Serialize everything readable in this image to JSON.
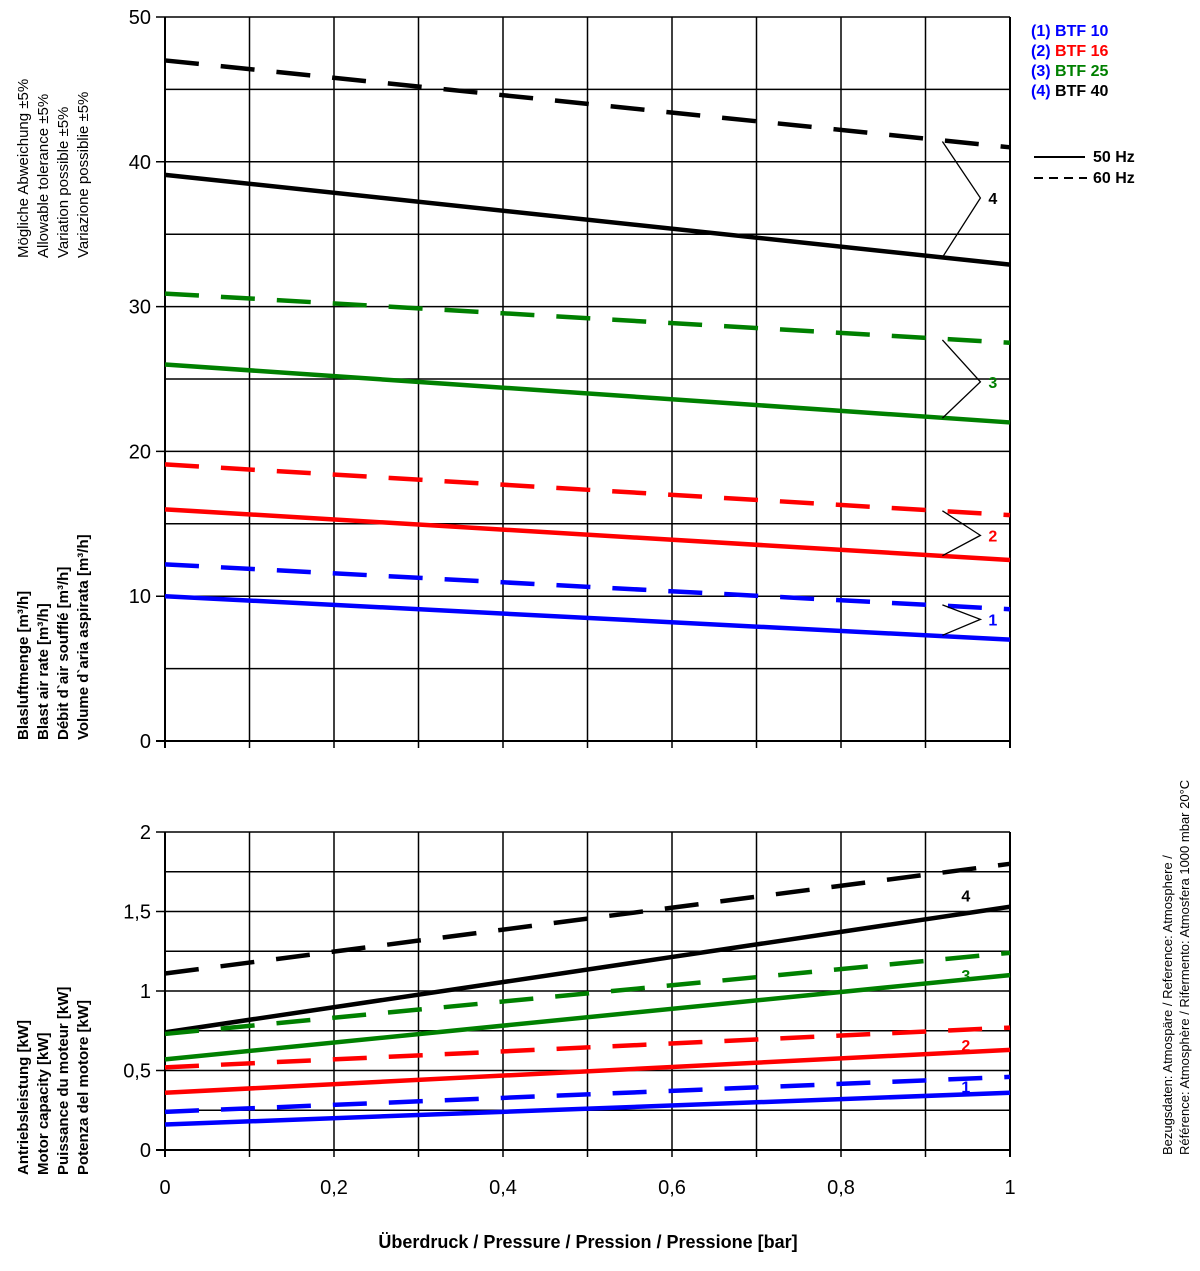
{
  "chart_data": [
    {
      "type": "line",
      "id": "flow",
      "title": "",
      "xlabel": "",
      "ylabel_lines": [
        "Blasluftmenge [m³/h]",
        "Blast air rate [m³/h]",
        "Débit d`air soufflé [m³/h]",
        "Volume d`aria aspirata [m³/h]"
      ],
      "tolerance_lines": [
        "Mögliche Abweichung ±5%",
        "Allowable tolerance ±5%",
        "Variation possible ±5%",
        "Variazione possiblie ±5%"
      ],
      "xlim": [
        0,
        1
      ],
      "ylim": [
        0,
        50
      ],
      "y_ticks": [
        0,
        10,
        20,
        30,
        40,
        50
      ],
      "y_tick_labels": [
        "0",
        "10",
        "20",
        "30",
        "40",
        "50"
      ],
      "y_minor_grid": [
        5,
        15,
        25,
        35,
        45
      ],
      "x_grid": [
        0,
        0.1,
        0.2,
        0.3,
        0.4,
        0.5,
        0.6,
        0.7,
        0.8,
        0.9,
        1
      ],
      "grid": true,
      "x": [
        0,
        1
      ],
      "series": [
        {
          "name": "BTF 40 60 Hz",
          "model": 4,
          "freq": "60 Hz",
          "color": "#000000",
          "dashed": true,
          "values": [
            47.0,
            41.0
          ]
        },
        {
          "name": "BTF 40 50 Hz",
          "model": 4,
          "freq": "50 Hz",
          "color": "#000000",
          "dashed": false,
          "values": [
            39.1,
            32.9
          ]
        },
        {
          "name": "BTF 25 60 Hz",
          "model": 3,
          "freq": "60 Hz",
          "color": "#008000",
          "dashed": true,
          "values": [
            30.9,
            27.5
          ]
        },
        {
          "name": "BTF 25 50 Hz",
          "model": 3,
          "freq": "50 Hz",
          "color": "#008000",
          "dashed": false,
          "values": [
            26.0,
            22.0
          ]
        },
        {
          "name": "BTF 16 60 Hz",
          "model": 2,
          "freq": "60 Hz",
          "color": "#ff0000",
          "dashed": true,
          "values": [
            19.1,
            15.6
          ]
        },
        {
          "name": "BTF 16 50 Hz",
          "model": 2,
          "freq": "50 Hz",
          "color": "#ff0000",
          "dashed": false,
          "values": [
            16.0,
            12.5
          ]
        },
        {
          "name": "BTF 10 60 Hz",
          "model": 1,
          "freq": "60 Hz",
          "color": "#0000ff",
          "dashed": true,
          "values": [
            12.2,
            9.1
          ]
        },
        {
          "name": "BTF 10 50 Hz",
          "model": 1,
          "freq": "50 Hz",
          "color": "#0000ff",
          "dashed": false,
          "values": [
            10.0,
            7.0
          ]
        }
      ],
      "annotations": [
        {
          "text": "4",
          "color": "#000000",
          "x": 0.92,
          "y_upper": 41.4,
          "y_lower": 33.4,
          "label_y": 37.5
        },
        {
          "text": "3",
          "color": "#008000",
          "x": 0.92,
          "y_upper": 27.7,
          "y_lower": 22.3,
          "label_y": 24.8
        },
        {
          "text": "2",
          "color": "#ff0000",
          "x": 0.92,
          "y_upper": 15.9,
          "y_lower": 12.8,
          "label_y": 14.2
        },
        {
          "text": "1",
          "color": "#0000ff",
          "x": 0.92,
          "y_upper": 9.4,
          "y_lower": 7.3,
          "label_y": 8.4
        }
      ]
    },
    {
      "type": "line",
      "id": "power",
      "title": "",
      "xlabel": "Überdruck / Pressure / Pression / Pressione   [bar]",
      "ylabel_lines": [
        "Antriebsleistung [kW]",
        "Motor capacity [kW]",
        "Puissance du moteur [kW]",
        "Potenza del motore [kW]"
      ],
      "xlim": [
        0,
        1
      ],
      "ylim": [
        0,
        2
      ],
      "x_ticks": [
        0,
        0.2,
        0.4,
        0.6,
        0.8,
        1
      ],
      "x_tick_labels": [
        "0",
        "0,2",
        "0,4",
        "0,6",
        "0,8",
        "1"
      ],
      "y_ticks": [
        0,
        0.5,
        1,
        1.5,
        2
      ],
      "y_tick_labels": [
        "0",
        "0,5",
        "1",
        "1,5",
        "2"
      ],
      "y_minor_grid": [
        0.25,
        0.75,
        1.25,
        1.75
      ],
      "x_grid": [
        0,
        0.1,
        0.2,
        0.3,
        0.4,
        0.5,
        0.6,
        0.7,
        0.8,
        0.9,
        1
      ],
      "grid": true,
      "x": [
        0,
        1
      ],
      "series": [
        {
          "name": "BTF 40 60 Hz",
          "model": 4,
          "freq": "60 Hz",
          "color": "#000000",
          "dashed": true,
          "values": [
            1.11,
            1.8
          ]
        },
        {
          "name": "BTF 40 50 Hz",
          "model": 4,
          "freq": "50 Hz",
          "color": "#000000",
          "dashed": false,
          "values": [
            0.74,
            1.53
          ]
        },
        {
          "name": "BTF 25 60 Hz",
          "model": 3,
          "freq": "60 Hz",
          "color": "#008000",
          "dashed": true,
          "values": [
            0.73,
            1.24
          ]
        },
        {
          "name": "BTF 25 50 Hz",
          "model": 3,
          "freq": "50 Hz",
          "color": "#008000",
          "dashed": false,
          "values": [
            0.57,
            1.1
          ]
        },
        {
          "name": "BTF 16 60 Hz",
          "model": 2,
          "freq": "60 Hz",
          "color": "#ff0000",
          "dashed": true,
          "values": [
            0.52,
            0.77
          ]
        },
        {
          "name": "BTF 16 50 Hz",
          "model": 2,
          "freq": "50 Hz",
          "color": "#ff0000",
          "dashed": false,
          "values": [
            0.36,
            0.63
          ]
        },
        {
          "name": "BTF 10 60 Hz",
          "model": 1,
          "freq": "60 Hz",
          "color": "#0000ff",
          "dashed": true,
          "values": [
            0.24,
            0.46
          ]
        },
        {
          "name": "BTF 10 50 Hz",
          "model": 1,
          "freq": "50 Hz",
          "color": "#0000ff",
          "dashed": false,
          "values": [
            0.16,
            0.36
          ]
        }
      ],
      "annotations": [
        {
          "text": "4",
          "color": "#000000",
          "x": 0.93,
          "y": 1.6
        },
        {
          "text": "3",
          "color": "#008000",
          "x": 0.93,
          "y": 1.1
        },
        {
          "text": "2",
          "color": "#ff0000",
          "x": 0.93,
          "y": 0.66
        },
        {
          "text": "1",
          "color": "#0000ff",
          "x": 0.93,
          "y": 0.4
        }
      ]
    }
  ],
  "legend": {
    "models": [
      {
        "num": "(1)",
        "label": "BTF 10",
        "num_color": "#0000ff",
        "label_color": "#0000ff"
      },
      {
        "num": "(2)",
        "label": "BTF 16",
        "num_color": "#0000ff",
        "label_color": "#ff0000"
      },
      {
        "num": "(3)",
        "label": "BTF 25",
        "num_color": "#0000ff",
        "label_color": "#008000"
      },
      {
        "num": "(4)",
        "label": "BTF 40",
        "num_color": "#0000ff",
        "label_color": "#000000"
      }
    ],
    "styles": [
      {
        "label": "50 Hz",
        "dashed": false
      },
      {
        "label": "60 Hz",
        "dashed": true
      }
    ],
    "position": "top-right"
  },
  "reference_note": {
    "line1": "Bezugsdaten: Atmospäre / Reference: Atmosphere /",
    "line2": "Référence: Atmosphère / Rifermento: Atmosfera   1000 mbar 20°C"
  }
}
